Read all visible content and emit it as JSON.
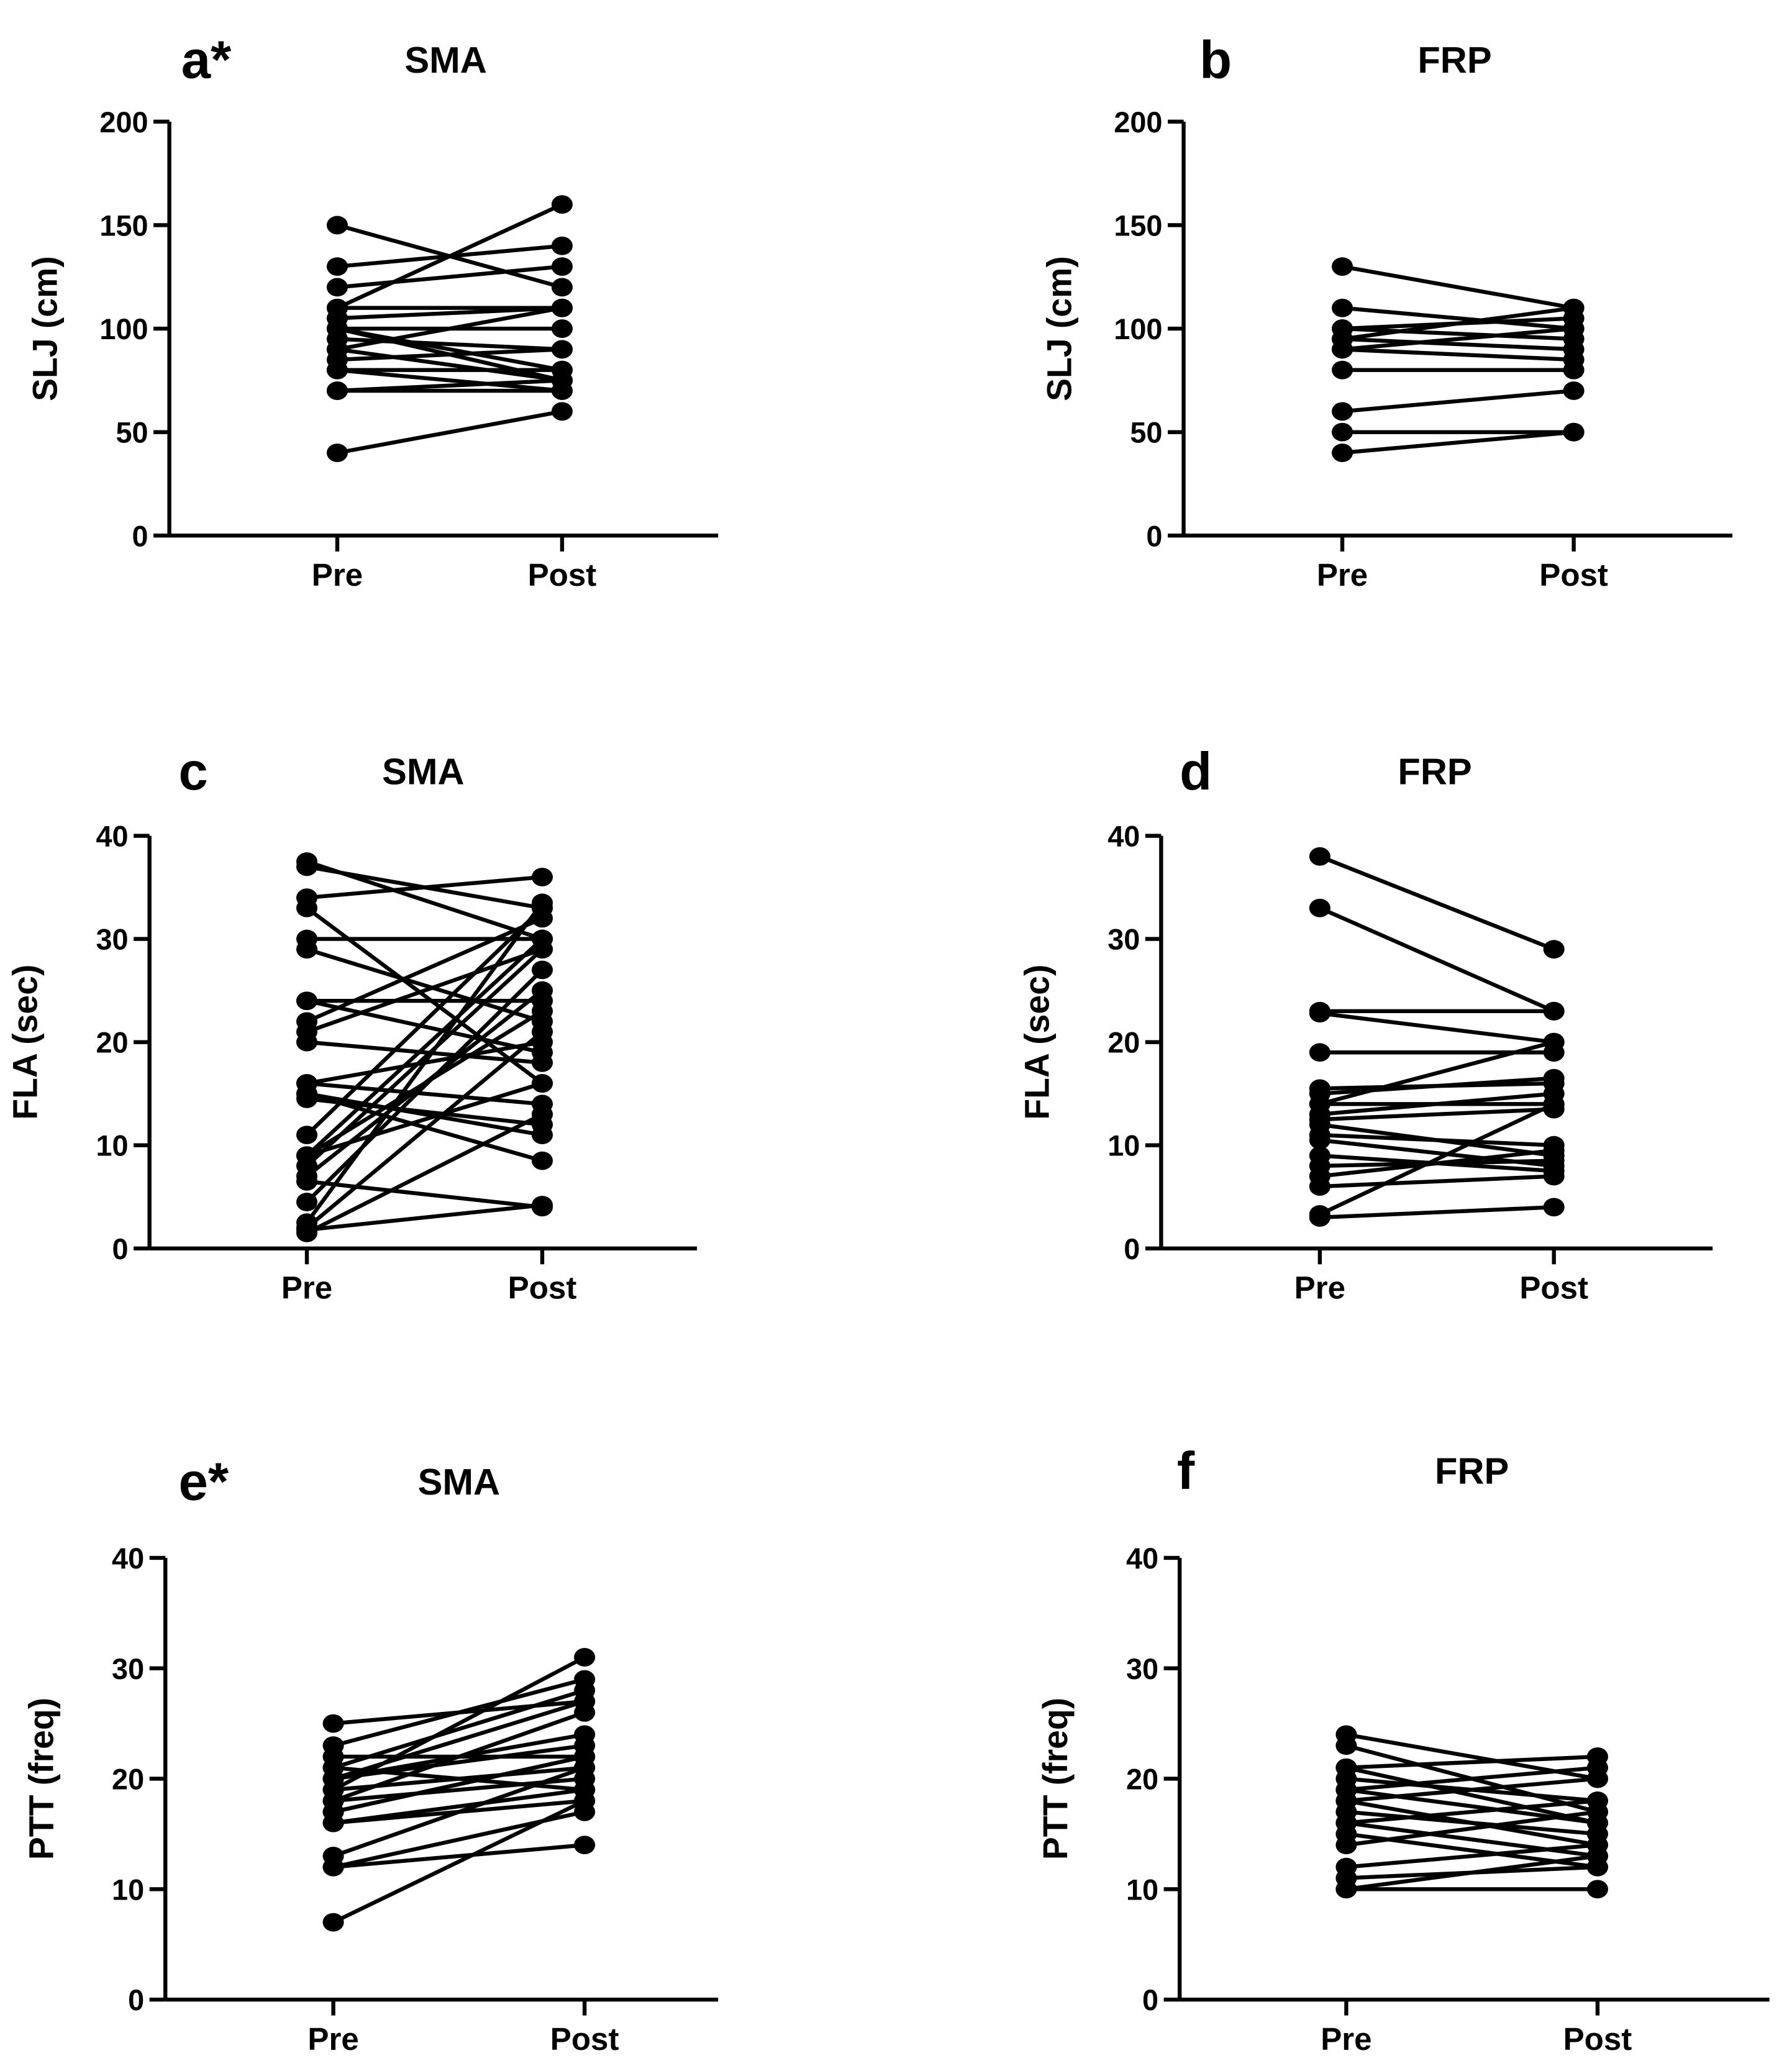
{
  "chart_data": [
    {
      "type": "paired",
      "panel": "a*",
      "title": "SMA",
      "ylabel": "SLJ (cm)",
      "categories": [
        "Pre",
        "Post"
      ],
      "ylim": [
        0,
        200
      ],
      "yticks": [
        0,
        50,
        100,
        150,
        200
      ],
      "color": "#000000",
      "pairs": [
        [
          40,
          60
        ],
        [
          150,
          120
        ],
        [
          130,
          140
        ],
        [
          120,
          130
        ],
        [
          110,
          160
        ],
        [
          110,
          110
        ],
        [
          105,
          110
        ],
        [
          100,
          100
        ],
        [
          100,
          80
        ],
        [
          95,
          90
        ],
        [
          90,
          110
        ],
        [
          90,
          75
        ],
        [
          85,
          90
        ],
        [
          80,
          80
        ],
        [
          80,
          70
        ],
        [
          70,
          75
        ],
        [
          70,
          70
        ],
        [
          100,
          75
        ]
      ]
    },
    {
      "type": "paired",
      "panel": "b",
      "title": "FRP",
      "ylabel": "SLJ (cm)",
      "categories": [
        "Pre",
        "Post"
      ],
      "ylim": [
        0,
        200
      ],
      "yticks": [
        0,
        50,
        100,
        150,
        200
      ],
      "color": "#000000",
      "pairs": [
        [
          130,
          110
        ],
        [
          110,
          100
        ],
        [
          100,
          105
        ],
        [
          100,
          95
        ],
        [
          95,
          110
        ],
        [
          95,
          90
        ],
        [
          90,
          85
        ],
        [
          90,
          100
        ],
        [
          80,
          80
        ],
        [
          60,
          70
        ],
        [
          50,
          50
        ],
        [
          40,
          50
        ]
      ]
    },
    {
      "type": "paired",
      "panel": "c",
      "title": "SMA",
      "ylabel": "FLA (sec)",
      "categories": [
        "Pre",
        "Post"
      ],
      "ylim": [
        0,
        40
      ],
      "yticks": [
        0,
        10,
        20,
        30,
        40
      ],
      "color": "#000000",
      "pairs": [
        [
          37.5,
          30
        ],
        [
          37,
          33
        ],
        [
          34,
          36
        ],
        [
          33,
          16
        ],
        [
          30,
          30
        ],
        [
          29,
          22
        ],
        [
          24,
          24
        ],
        [
          24,
          19
        ],
        [
          22,
          32
        ],
        [
          21,
          29
        ],
        [
          20,
          18
        ],
        [
          16,
          20
        ],
        [
          16,
          14
        ],
        [
          15,
          8.5
        ],
        [
          14.5,
          12
        ],
        [
          11,
          33
        ],
        [
          9,
          30
        ],
        [
          9,
          23
        ],
        [
          8,
          29
        ],
        [
          7,
          25
        ],
        [
          6.5,
          4
        ],
        [
          4.5,
          27
        ],
        [
          2.5,
          33.5
        ],
        [
          2,
          21
        ],
        [
          1.5,
          13
        ],
        [
          1.8,
          4.2
        ],
        [
          9,
          16
        ],
        [
          15,
          11
        ]
      ]
    },
    {
      "type": "paired",
      "panel": "d",
      "title": "FRP",
      "ylabel": "FLA (sec)",
      "categories": [
        "Pre",
        "Post"
      ],
      "ylim": [
        0,
        40
      ],
      "yticks": [
        0,
        10,
        20,
        30,
        40
      ],
      "color": "#000000",
      "pairs": [
        [
          38,
          29
        ],
        [
          33,
          23
        ],
        [
          23,
          23
        ],
        [
          22.8,
          20
        ],
        [
          19,
          19
        ],
        [
          15.5,
          16
        ],
        [
          15,
          16.5
        ],
        [
          14,
          20
        ],
        [
          14,
          14
        ],
        [
          13,
          15
        ],
        [
          12.5,
          13.5
        ],
        [
          12,
          9
        ],
        [
          11,
          10
        ],
        [
          10.5,
          8
        ],
        [
          9,
          7.5
        ],
        [
          8,
          8.5
        ],
        [
          7,
          9.5
        ],
        [
          6,
          7
        ],
        [
          3.3,
          14
        ],
        [
          3,
          4
        ]
      ]
    },
    {
      "type": "paired",
      "panel": "e*",
      "title": "SMA",
      "ylabel": "PTT (freq)",
      "categories": [
        "Pre",
        "Post"
      ],
      "ylim": [
        0,
        40
      ],
      "yticks": [
        0,
        10,
        20,
        30,
        40
      ],
      "color": "#000000",
      "pairs": [
        [
          25,
          27
        ],
        [
          23,
          29
        ],
        [
          22,
          22
        ],
        [
          21,
          28
        ],
        [
          20,
          24
        ],
        [
          20,
          23
        ],
        [
          19,
          31
        ],
        [
          19,
          21
        ],
        [
          18,
          20
        ],
        [
          18,
          26
        ],
        [
          17,
          22
        ],
        [
          16,
          19
        ],
        [
          16,
          18
        ],
        [
          13,
          21
        ],
        [
          12,
          14
        ],
        [
          12,
          17
        ],
        [
          7,
          18
        ],
        [
          21,
          19
        ],
        [
          20,
          27
        ],
        [
          17,
          22
        ]
      ]
    },
    {
      "type": "paired",
      "panel": "f",
      "title": "FRP",
      "ylabel": "PTT (freq)",
      "categories": [
        "Pre",
        "Post"
      ],
      "ylim": [
        0,
        40
      ],
      "yticks": [
        0,
        10,
        20,
        30,
        40
      ],
      "color": "#000000",
      "pairs": [
        [
          24,
          20
        ],
        [
          23,
          17
        ],
        [
          21,
          22
        ],
        [
          21,
          16
        ],
        [
          20,
          18
        ],
        [
          19,
          21
        ],
        [
          18,
          14
        ],
        [
          17,
          15
        ],
        [
          16,
          18
        ],
        [
          16,
          13
        ],
        [
          15,
          12
        ],
        [
          14,
          17
        ],
        [
          12,
          14
        ],
        [
          11,
          12
        ],
        [
          10,
          10
        ],
        [
          10,
          13
        ],
        [
          18,
          20
        ],
        [
          19,
          16
        ]
      ]
    }
  ]
}
